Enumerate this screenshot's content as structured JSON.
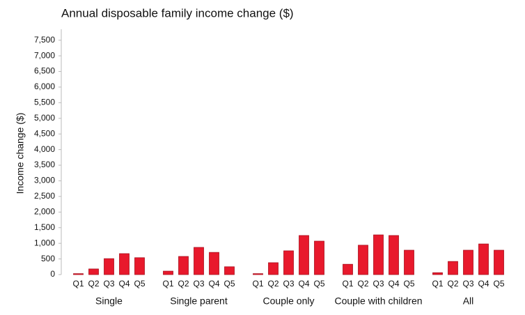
{
  "chart_data": {
    "type": "grouped-bar",
    "title": "Annual disposable family income change ($)",
    "y_label": "Income change ($)",
    "categories": [
      "Single",
      "Single parent",
      "Couple only",
      "Couple with children",
      "All"
    ],
    "series": [
      {
        "name": "Q1",
        "values": [
          30,
          110,
          30,
          330,
          60
        ]
      },
      {
        "name": "Q2",
        "values": [
          180,
          580,
          380,
          940,
          420
        ]
      },
      {
        "name": "Q3",
        "values": [
          510,
          870,
          760,
          1270,
          780
        ]
      },
      {
        "name": "Q4",
        "values": [
          670,
          710,
          1250,
          1250,
          980
        ]
      },
      {
        "name": "Q5",
        "values": [
          540,
          250,
          1070,
          780,
          780
        ]
      }
    ],
    "color": "#e8192c",
    "ylim": [
      0,
      7850
    ],
    "yticks": [
      0,
      500,
      {
        "value": 1000,
        "label": "1,000"
      },
      {
        "value": 1500,
        "label": "1,500"
      },
      {
        "value": 2000,
        "label": "2,000"
      },
      {
        "value": 2500,
        "label": "2,500"
      },
      {
        "value": 3000,
        "label": "3,000"
      },
      {
        "value": 3500,
        "label": "3,500"
      },
      {
        "value": 4000,
        "label": "4,000"
      },
      {
        "value": 4500,
        "label": "4,500"
      },
      {
        "value": 5000,
        "label": "5,000"
      },
      {
        "value": 5500,
        "label": "5,500"
      },
      {
        "value": 6000,
        "label": "6,000"
      },
      {
        "value": 6500,
        "label": "6,500"
      },
      {
        "value": 7000,
        "label": "7,000"
      },
      {
        "value": 7500,
        "label": "7,500"
      }
    ],
    "grid": false
  }
}
